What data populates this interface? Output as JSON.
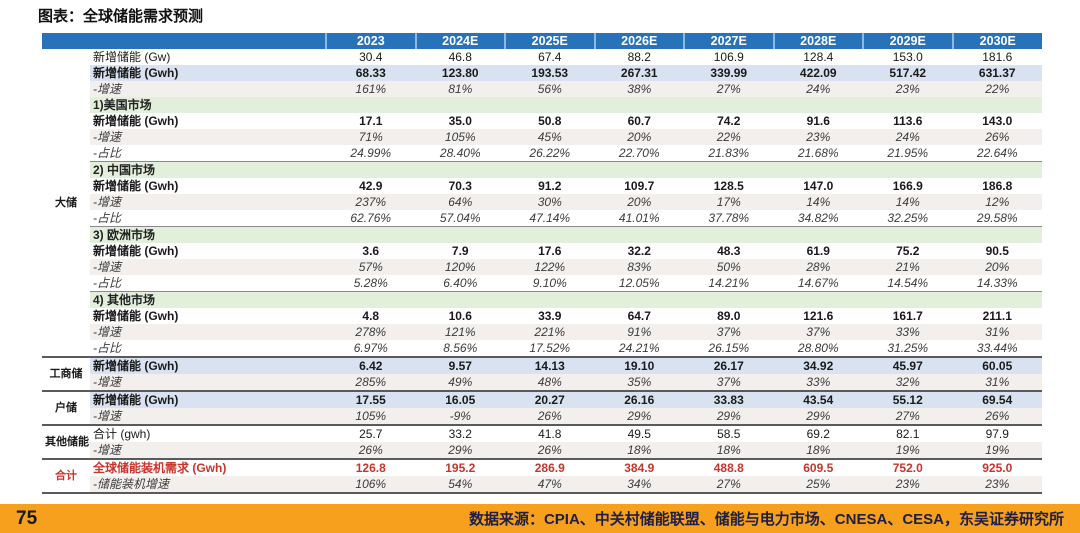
{
  "title": "图表：全球储能需求预测",
  "footer": {
    "page_number": "75",
    "source": "数据来源：CPIA、中关村储能联盟、储能与电力市场、CNESA、CESA，东吴证券研究所"
  },
  "colors": {
    "header_blue": "#2772B8",
    "light_blue_row": "#D9E2F0",
    "section_green": "#E2EFDA",
    "gray_row": "#F2EFED",
    "total_red": "#C9352B",
    "footer_orange": "#F7A01D"
  },
  "table": {
    "col_headers": [
      "2023",
      "2024E",
      "2025E",
      "2026E",
      "2027E",
      "2028E",
      "2029E",
      "2030E"
    ],
    "rows": [
      {
        "group": "大储",
        "group_span": 19,
        "label": "新增储能 (Gw)",
        "style": "plain",
        "values": [
          "30.4",
          "46.8",
          "67.4",
          "88.2",
          "106.9",
          "128.4",
          "153.0",
          "181.6"
        ]
      },
      {
        "label": "新增储能 (Gwh)",
        "style": "bold-blue",
        "values": [
          "68.33",
          "123.80",
          "193.53",
          "267.31",
          "339.99",
          "422.09",
          "517.42",
          "631.37"
        ]
      },
      {
        "label": "-增速",
        "style": "italic-gray",
        "values": [
          "161%",
          "81%",
          "56%",
          "38%",
          "27%",
          "24%",
          "23%",
          "22%"
        ]
      },
      {
        "label": "1)美国市场",
        "style": "section",
        "values": []
      },
      {
        "label": "新增储能 (Gwh)",
        "style": "bold",
        "values": [
          "17.1",
          "35.0",
          "50.8",
          "60.7",
          "74.2",
          "91.6",
          "113.6",
          "143.0"
        ]
      },
      {
        "label": "-增速",
        "style": "italic-gray",
        "values": [
          "71%",
          "105%",
          "45%",
          "20%",
          "22%",
          "23%",
          "24%",
          "26%"
        ]
      },
      {
        "label": "-占比",
        "style": "italic",
        "border": "thin",
        "values": [
          "24.99%",
          "28.40%",
          "26.22%",
          "22.70%",
          "21.83%",
          "21.68%",
          "21.95%",
          "22.64%"
        ]
      },
      {
        "label": "2) 中国市场",
        "style": "section",
        "values": []
      },
      {
        "label": "新增储能 (Gwh)",
        "style": "bold",
        "values": [
          "42.9",
          "70.3",
          "91.2",
          "109.7",
          "128.5",
          "147.0",
          "166.9",
          "186.8"
        ]
      },
      {
        "label": "-增速",
        "style": "italic-gray",
        "values": [
          "237%",
          "64%",
          "30%",
          "20%",
          "17%",
          "14%",
          "14%",
          "12%"
        ]
      },
      {
        "label": "-占比",
        "style": "italic",
        "border": "thin",
        "values": [
          "62.76%",
          "57.04%",
          "47.14%",
          "41.01%",
          "37.78%",
          "34.82%",
          "32.25%",
          "29.58%"
        ]
      },
      {
        "label": "3) 欧洲市场",
        "style": "section",
        "values": []
      },
      {
        "label": "新增储能 (Gwh)",
        "style": "bold",
        "values": [
          "3.6",
          "7.9",
          "17.6",
          "32.2",
          "48.3",
          "61.9",
          "75.2",
          "90.5"
        ]
      },
      {
        "label": "-增速",
        "style": "italic-gray",
        "values": [
          "57%",
          "120%",
          "122%",
          "83%",
          "50%",
          "28%",
          "21%",
          "20%"
        ]
      },
      {
        "label": "-占比",
        "style": "italic",
        "border": "thin",
        "values": [
          "5.28%",
          "6.40%",
          "9.10%",
          "12.05%",
          "14.21%",
          "14.67%",
          "14.54%",
          "14.33%"
        ]
      },
      {
        "label": "4) 其他市场",
        "style": "section",
        "values": []
      },
      {
        "label": "新增储能 (Gwh)",
        "style": "bold",
        "values": [
          "4.8",
          "10.6",
          "33.9",
          "64.7",
          "89.0",
          "121.6",
          "161.7",
          "211.1"
        ]
      },
      {
        "label": "-增速",
        "style": "italic-gray",
        "values": [
          "278%",
          "121%",
          "221%",
          "91%",
          "37%",
          "37%",
          "33%",
          "31%"
        ]
      },
      {
        "label": "-占比",
        "style": "italic",
        "border": "thick",
        "values": [
          "6.97%",
          "8.56%",
          "17.52%",
          "24.21%",
          "26.15%",
          "28.80%",
          "31.25%",
          "33.44%"
        ]
      },
      {
        "group": "工商储",
        "group_span": 2,
        "label": "新增储能 (Gwh)",
        "style": "bold-blue",
        "values": [
          "6.42",
          "9.57",
          "14.13",
          "19.10",
          "26.17",
          "34.92",
          "45.97",
          "60.05"
        ]
      },
      {
        "label": "-增速",
        "style": "italic-gray",
        "border": "thick",
        "values": [
          "285%",
          "49%",
          "48%",
          "35%",
          "37%",
          "33%",
          "32%",
          "31%"
        ]
      },
      {
        "group": "户储",
        "group_span": 2,
        "label": "新增储能 (Gwh)",
        "style": "bold-blue",
        "values": [
          "17.55",
          "16.05",
          "20.27",
          "26.16",
          "33.83",
          "43.54",
          "55.12",
          "69.54"
        ]
      },
      {
        "label": "-增速",
        "style": "italic-gray",
        "border": "thick",
        "values": [
          "105%",
          "-9%",
          "26%",
          "29%",
          "29%",
          "29%",
          "27%",
          "26%"
        ]
      },
      {
        "group": "其他储能",
        "group_span": 2,
        "label": "合计 (gwh)",
        "style": "plain",
        "values": [
          "25.7",
          "33.2",
          "41.8",
          "49.5",
          "58.5",
          "69.2",
          "82.1",
          "97.9"
        ]
      },
      {
        "label": "-增速",
        "style": "italic-gray",
        "border": "thick",
        "values": [
          "26%",
          "29%",
          "26%",
          "18%",
          "18%",
          "18%",
          "19%",
          "19%"
        ]
      },
      {
        "group": "合计",
        "group_span": 2,
        "group_style": "total-red",
        "label": "全球储能装机需求 (Gwh)",
        "style": "total-red",
        "values": [
          "126.8",
          "195.2",
          "286.9",
          "384.9",
          "488.8",
          "609.5",
          "752.0",
          "925.0"
        ]
      },
      {
        "label": "-储能装机增速",
        "style": "italic-gray",
        "border": "thick",
        "values": [
          "106%",
          "54%",
          "47%",
          "34%",
          "27%",
          "25%",
          "23%",
          "23%"
        ]
      }
    ]
  }
}
